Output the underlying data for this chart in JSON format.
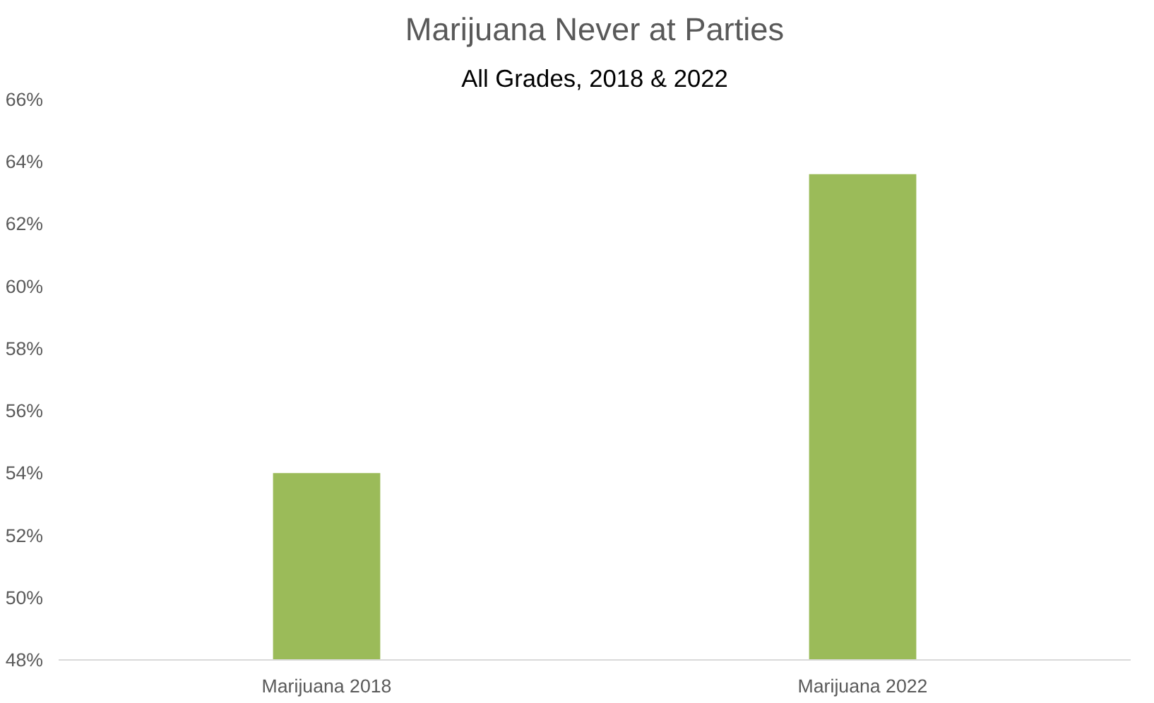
{
  "chart_data": {
    "type": "bar",
    "title": "Marijuana Never at Parties",
    "subtitle": "All Grades, 2018 & 2022",
    "categories": [
      "Marijuana 2018",
      "Marijuana 2022"
    ],
    "values": [
      54.0,
      63.6
    ],
    "color": "#9bbb59",
    "ylim": [
      48,
      66
    ],
    "yticks": [
      {
        "value": 48,
        "label": "48%"
      },
      {
        "value": 50,
        "label": "50%"
      },
      {
        "value": 52,
        "label": "52%"
      },
      {
        "value": 54,
        "label": "54%"
      },
      {
        "value": 56,
        "label": "56%"
      },
      {
        "value": 58,
        "label": "58%"
      },
      {
        "value": 60,
        "label": "60%"
      },
      {
        "value": 62,
        "label": "62%"
      },
      {
        "value": 64,
        "label": "64%"
      },
      {
        "value": 66,
        "label": "66%"
      }
    ],
    "grid": false
  }
}
